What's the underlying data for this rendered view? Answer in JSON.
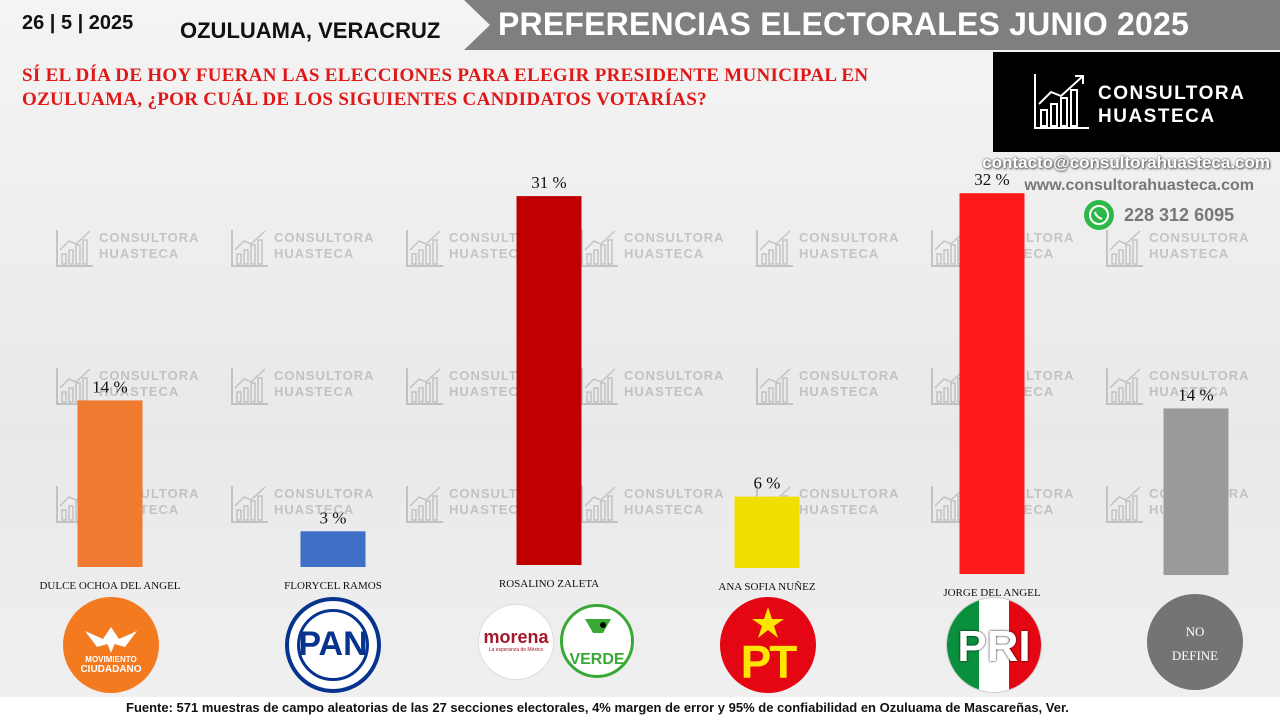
{
  "header": {
    "date": "26 | 5 | 2025",
    "location": "OZULUAMA, VERACRUZ",
    "title": "PREFERENCIAS ELECTORALES JUNIO 2025"
  },
  "question": "SÍ EL DÍA DE HOY FUERAN LAS ELECCIONES PARA ELEGIR PRESIDENTE MUNICIPAL EN OZULUAMA, ¿POR CUÁL DE LOS SIGUIENTES CANDIDATOS VOTARÍAS?",
  "brand": {
    "line1": "CONSULTORA",
    "line2": "HUASTECA",
    "email": "contacto@consultorahuasteca.com",
    "website": "www.consultorahuasteca.com",
    "phone": "228 312 6095"
  },
  "parties": {
    "mc_line1": "MOVIMIENTO",
    "mc_line2": "CIUDADANO",
    "pan": "PAN",
    "morena": "morena",
    "morena_sub": "La esperanza de México",
    "verde": "VERDE",
    "pt": "PT",
    "pri": "PRI",
    "no_define_line1": "NO",
    "no_define_line2": "DEFINE"
  },
  "footer": "Fuente:  571 muestras de campo aleatorias de las 27 secciones electorales, 4% margen de error y 95% de confiabilidad en Ozuluama de Mascareñas, Ver.",
  "chart_data": {
    "type": "bar",
    "categories": [
      "DULCE OCHOA DEL ANGEL",
      "FLORYCEL RAMOS",
      "ROSALINO ZALETA",
      "ANA SOFIA NUÑEZ",
      "JORGE DEL ANGEL",
      ""
    ],
    "values": [
      14,
      3,
      31,
      6,
      32,
      14
    ],
    "value_labels": [
      "14 %",
      "3 %",
      "31 %",
      "6 %",
      "32 %",
      "14 %"
    ],
    "colors": [
      "#f07a30",
      "#3f6fc6",
      "#c00000",
      "#f0e000",
      "#ff1a1a",
      "#9a9a9a"
    ],
    "ylim": [
      0,
      32
    ],
    "grid": false,
    "legend": "none"
  }
}
